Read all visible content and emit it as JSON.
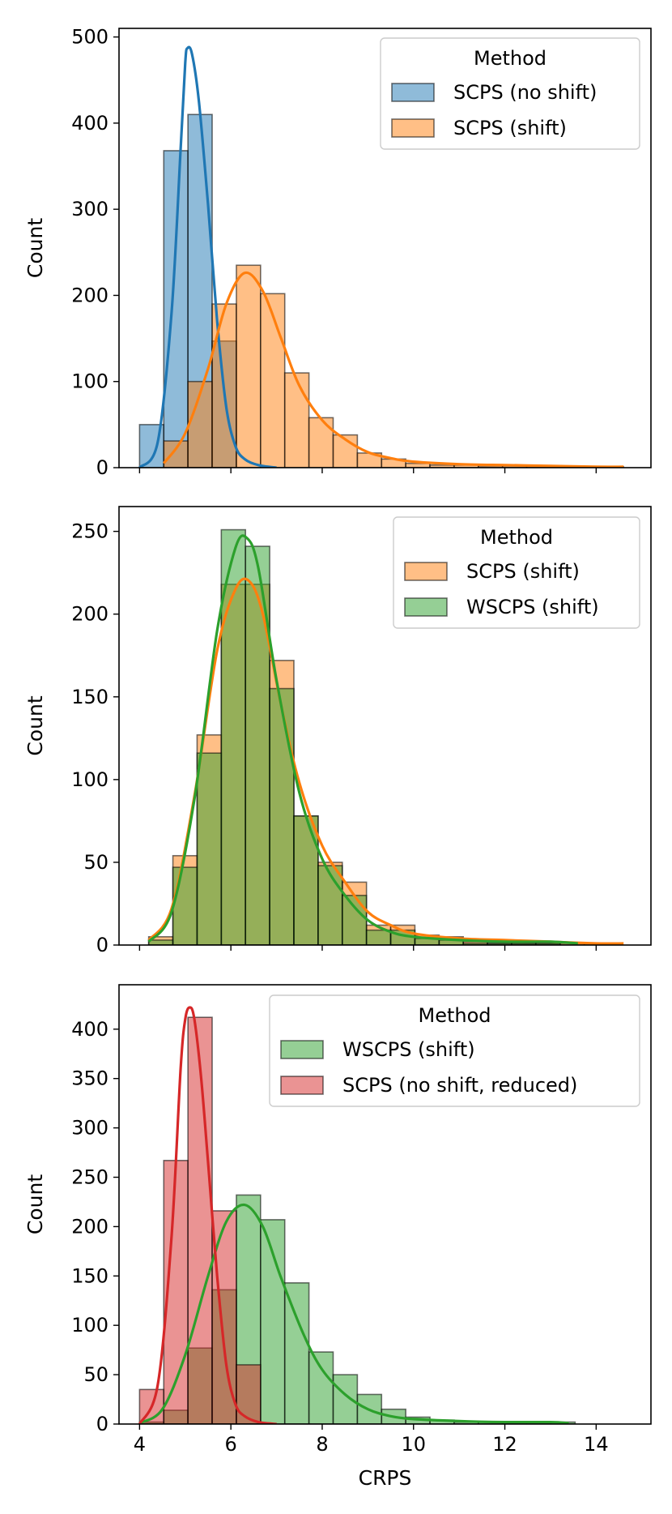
{
  "chart_data": [
    {
      "type": "histogram",
      "xlabel": "",
      "ylabel": "Count",
      "xlim": [
        3.55,
        15.2
      ],
      "ylim": [
        0,
        510
      ],
      "xticks": [
        4,
        6,
        8,
        10,
        12,
        14
      ],
      "yticks": [
        0,
        100,
        200,
        300,
        400,
        500
      ],
      "legend": {
        "title": "Method",
        "position": "top-right",
        "entries": [
          "SCPS (no shift)",
          "SCPS (shift)"
        ]
      },
      "series": [
        {
          "name": "SCPS (no shift)",
          "color": "#1f77b4",
          "bins_start": [
            4.0,
            4.53,
            5.06,
            5.59
          ],
          "bin_width": 0.53,
          "counts": [
            50,
            368,
            410,
            147
          ],
          "kde": {
            "x": [
              4.0,
              4.4,
              4.7,
              4.9,
              5.0,
              5.05,
              5.15,
              5.3,
              5.5,
              5.7,
              5.9,
              6.1,
              6.3,
              6.6,
              7.0
            ],
            "y": [
              0,
              30,
              180,
              370,
              470,
              487,
              480,
              425,
              305,
              170,
              70,
              25,
              10,
              3,
              0
            ]
          }
        },
        {
          "name": "SCPS (shift)",
          "color": "#ff7f0e",
          "bins_start": [
            4.53,
            5.06,
            5.59,
            6.12,
            6.65,
            7.18,
            7.71,
            8.24,
            8.77,
            9.3,
            9.83,
            10.36,
            10.89,
            11.42,
            11.95,
            12.48,
            13.01,
            13.54,
            14.07
          ],
          "bin_width": 0.53,
          "counts": [
            31,
            100,
            190,
            235,
            202,
            110,
            58,
            38,
            17,
            10,
            5,
            3,
            3,
            2,
            2,
            2,
            2,
            1,
            1
          ],
          "kde": {
            "x": [
              4.53,
              5.0,
              5.5,
              5.9,
              6.3,
              6.7,
              7.1,
              7.5,
              8.0,
              8.5,
              9.0,
              9.5,
              10.0,
              11.0,
              12.0,
              13.0,
              14.0,
              14.6
            ],
            "y": [
              5,
              40,
              115,
              190,
              226,
              205,
              150,
              95,
              55,
              33,
              18,
              11,
              7,
              4,
              3,
              2,
              1,
              1
            ]
          }
        }
      ]
    },
    {
      "type": "histogram",
      "xlabel": "",
      "ylabel": "Count",
      "xlim": [
        3.55,
        15.2
      ],
      "ylim": [
        0,
        265
      ],
      "xticks": [
        4,
        6,
        8,
        10,
        12,
        14
      ],
      "yticks": [
        0,
        50,
        100,
        150,
        200,
        250
      ],
      "legend": {
        "title": "Method",
        "position": "top-right",
        "entries": [
          "SCPS (shift)",
          "WSCPS (shift)"
        ]
      },
      "series": [
        {
          "name": "SCPS (shift)",
          "color": "#ff7f0e",
          "bins_start": [
            4.2,
            4.73,
            5.26,
            5.79,
            6.32,
            6.85,
            7.38,
            7.91,
            8.44,
            8.97,
            9.5,
            10.03,
            10.56,
            11.09,
            11.62,
            12.15,
            12.68,
            13.21,
            13.74
          ],
          "bin_width": 0.53,
          "counts": [
            5,
            54,
            127,
            218,
            218,
            172,
            78,
            50,
            38,
            12,
            12,
            6,
            5,
            2,
            1,
            1,
            1,
            1,
            1
          ],
          "kde": {
            "x": [
              4.2,
              4.7,
              5.2,
              5.7,
              6.1,
              6.4,
              6.7,
              7.1,
              7.5,
              8.0,
              8.5,
              9.0,
              9.5,
              10.0,
              11.0,
              12.0,
              13.0,
              14.0,
              14.6
            ],
            "y": [
              3,
              22,
              90,
              178,
              215,
              220,
              200,
              145,
              98,
              60,
              38,
              20,
              12,
              7,
              4,
              3,
              2,
              1,
              1
            ]
          }
        },
        {
          "name": "WSCPS (shift)",
          "color": "#2ca02c",
          "bins_start": [
            4.2,
            4.73,
            5.26,
            5.79,
            6.32,
            6.85,
            7.38,
            7.91,
            8.44,
            8.97,
            9.5,
            10.03,
            10.56,
            11.09,
            11.62,
            12.15,
            12.68
          ],
          "bin_width": 0.53,
          "counts": [
            3,
            47,
            116,
            251,
            241,
            155,
            78,
            48,
            30,
            9,
            9,
            4,
            3,
            1,
            1,
            1,
            1
          ],
          "kde": {
            "x": [
              4.2,
              4.7,
              5.2,
              5.7,
              6.1,
              6.35,
              6.6,
              7.0,
              7.5,
              8.0,
              8.5,
              9.0,
              9.5,
              10.0,
              11.0,
              12.0,
              13.0,
              13.6
            ],
            "y": [
              2,
              20,
              88,
              190,
              240,
              246,
              228,
              160,
              92,
              52,
              30,
              15,
              8,
              5,
              3,
              2,
              2,
              1
            ]
          }
        }
      ]
    },
    {
      "type": "histogram",
      "xlabel": "CRPS",
      "ylabel": "Count",
      "xlim": [
        3.55,
        15.2
      ],
      "ylim": [
        0,
        445
      ],
      "xticks": [
        4,
        6,
        8,
        10,
        12,
        14
      ],
      "yticks": [
        0,
        50,
        100,
        150,
        200,
        250,
        300,
        350,
        400
      ],
      "legend": {
        "title": "Method",
        "position": "top-right",
        "entries": [
          "WSCPS (shift)",
          "SCPS (no shift, reduced)"
        ]
      },
      "series": [
        {
          "name": "WSCPS (shift)",
          "color": "#2ca02c",
          "bins_start": [
            4.0,
            4.53,
            5.06,
            5.59,
            6.12,
            6.65,
            7.18,
            7.71,
            8.24,
            8.77,
            9.3,
            9.83,
            10.36,
            10.89,
            11.42,
            11.95,
            12.48,
            13.01
          ],
          "bin_width": 0.53,
          "counts": [
            2,
            14,
            77,
            136,
            232,
            207,
            143,
            73,
            50,
            30,
            15,
            7,
            4,
            2,
            2,
            1,
            1,
            2
          ],
          "kde": {
            "x": [
              4.0,
              4.5,
              5.0,
              5.5,
              5.9,
              6.3,
              6.7,
              7.1,
              7.6,
              8.0,
              8.5,
              9.0,
              9.5,
              10.0,
              11.0,
              12.0,
              13.0,
              13.4
            ],
            "y": [
              1,
              15,
              70,
              150,
              205,
              222,
              200,
              148,
              90,
              55,
              30,
              15,
              8,
              5,
              3,
              2,
              2,
              1
            ]
          }
        },
        {
          "name": "SCPS (no shift, reduced)",
          "color": "#d62728",
          "bins_start": [
            4.0,
            4.53,
            5.06,
            5.59,
            6.12
          ],
          "bin_width": 0.53,
          "counts": [
            35,
            267,
            412,
            216,
            60
          ],
          "kde": {
            "x": [
              4.0,
              4.4,
              4.7,
              4.9,
              5.0,
              5.1,
              5.2,
              5.35,
              5.5,
              5.7,
              5.9,
              6.1,
              6.3,
              6.6,
              7.0
            ],
            "y": [
              0,
              40,
              190,
              360,
              410,
              422,
              410,
              350,
              265,
              150,
              60,
              20,
              8,
              2,
              0
            ]
          }
        }
      ]
    }
  ]
}
